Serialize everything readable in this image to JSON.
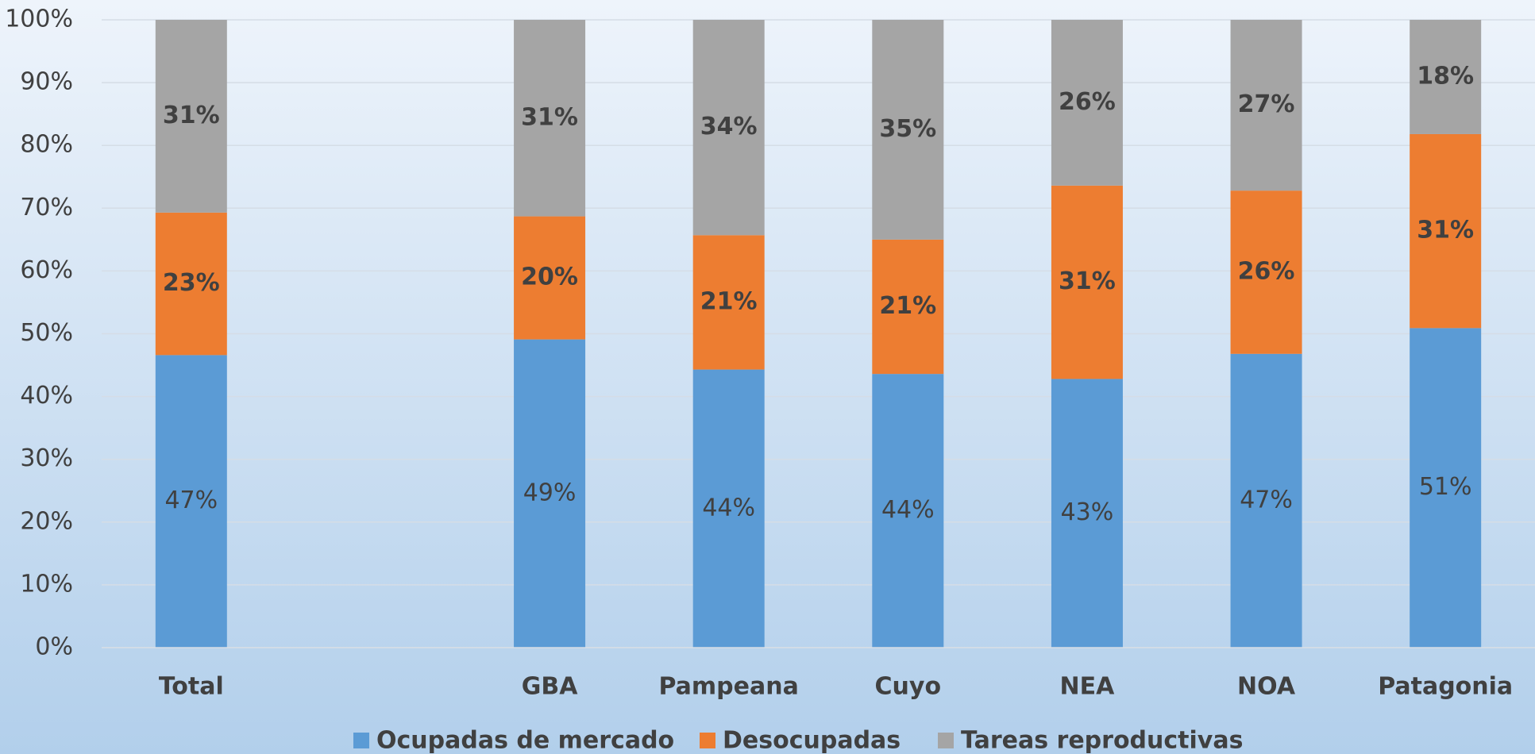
{
  "chart_data": {
    "type": "stacked_bar",
    "categories": [
      "Total",
      null,
      "GBA",
      "Pampeana",
      "Cuyo",
      "NEA",
      "NOA",
      "Patagonia"
    ],
    "series": [
      {
        "name": "Ocupadas de mercado",
        "color": "#5b9bd5",
        "values": [
          46.6,
          null,
          49.1,
          44.3,
          43.6,
          42.8,
          46.8,
          50.9
        ],
        "value_labels": [
          "47%",
          null,
          "49%",
          "44%",
          "44%",
          "43%",
          "47%",
          "51%"
        ]
      },
      {
        "name": "Desocupadas",
        "color": "#ed7d31",
        "values": [
          22.7,
          null,
          19.6,
          21.4,
          21.4,
          30.8,
          26.0,
          30.9
        ],
        "value_labels": [
          "23%",
          null,
          "20%",
          "21%",
          "21%",
          "31%",
          "26%",
          "31%"
        ]
      },
      {
        "name": "Tareas reproductivas",
        "color": "#a5a5a5",
        "values": [
          30.7,
          null,
          31.3,
          34.3,
          35.0,
          26.4,
          27.2,
          18.2
        ],
        "value_labels": [
          "31%",
          null,
          "31%",
          "34%",
          "35%",
          "26%",
          "27%",
          "18%"
        ]
      }
    ],
    "ylim": [
      0,
      100
    ],
    "yticks": [
      {
        "value": 0,
        "label": "0%"
      },
      {
        "value": 10,
        "label": "10%"
      },
      {
        "value": 20,
        "label": "20%"
      },
      {
        "value": 30,
        "label": "30%"
      },
      {
        "value": 40,
        "label": "40%"
      },
      {
        "value": 50,
        "label": "50%"
      },
      {
        "value": 60,
        "label": "60%"
      },
      {
        "value": 70,
        "label": "70%"
      },
      {
        "value": 80,
        "label": "80%"
      },
      {
        "value": 90,
        "label": "90%"
      },
      {
        "value": 100,
        "label": "100%"
      }
    ],
    "grid": true,
    "legend": "bottom"
  }
}
